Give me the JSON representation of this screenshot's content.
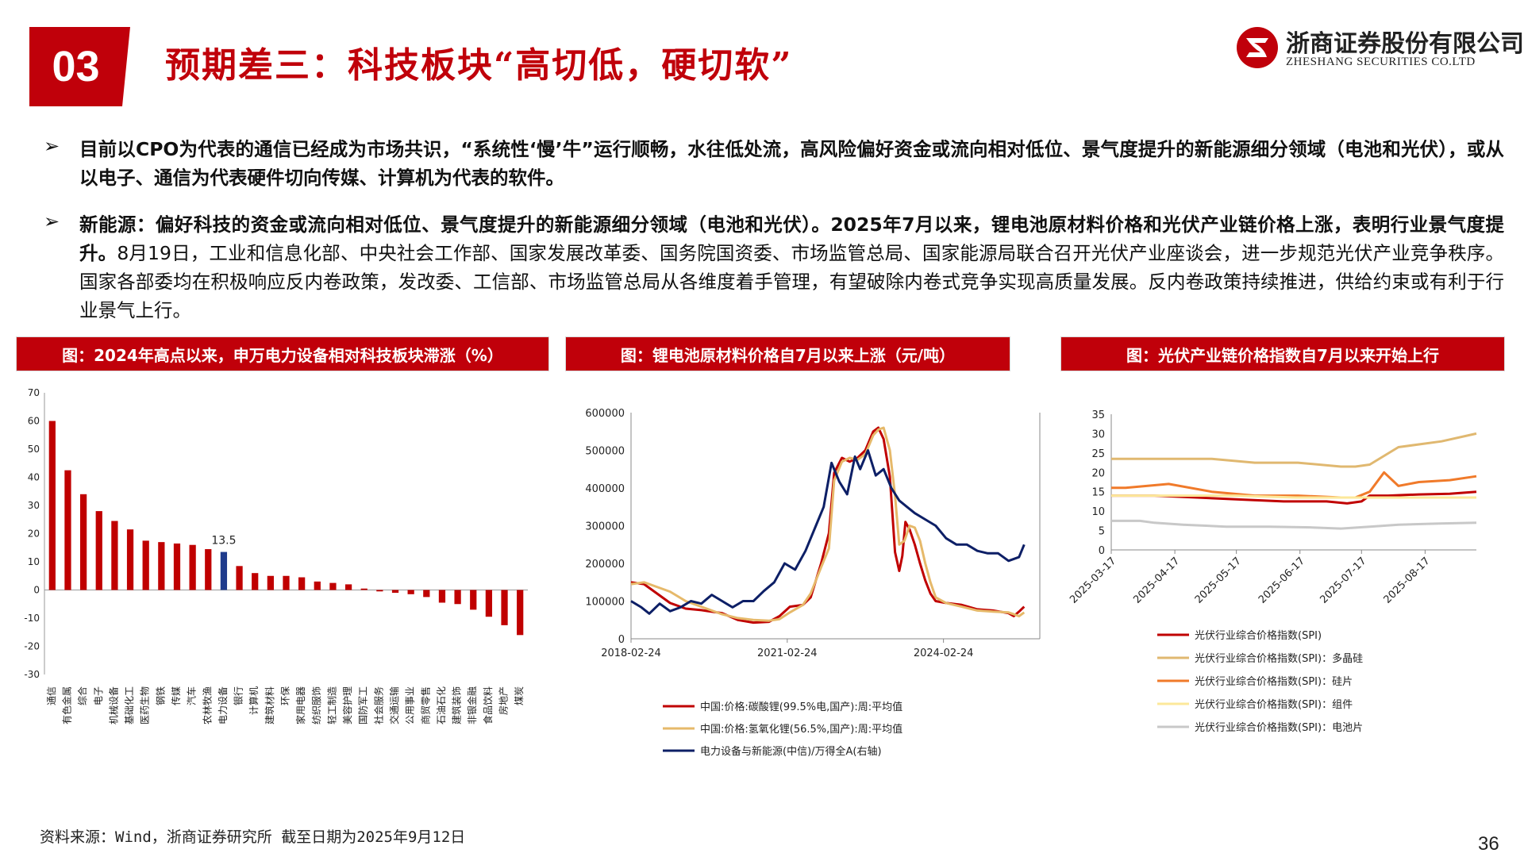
{
  "header": {
    "section_number": "03",
    "title": "预期差三：科技板块“高切低，硬切软”",
    "company_cn": "浙商证券股份有限公司",
    "company_en": "ZHESHANG SECURITIES CO.LTD",
    "brand_color": "#c0000a"
  },
  "bullets": [
    {
      "arrow": "➢",
      "bold_text": "目前以CPO为代表的通信已经成为市场共识，“系统性‘慢’牛”运行顺畅，水往低处流，高风险偏好资金或流向相对低位、景气度提升的新能源细分领域（电池和光伏），或从以电子、通信为代表硬件切向传媒、计算机为代表的软件。",
      "normal_text": ""
    },
    {
      "arrow": "➢",
      "bold_text": "新能源：偏好科技的资金或流向相对低位、景气度提升的新能源细分领域（电池和光伏）。2025年7月以来，锂电池原材料价格和光伏产业链价格上涨，表明行业景气度提升。",
      "normal_text": "8月19日，工业和信息化部、中央社会工作部、国家发展改革委、国务院国资委、市场监管总局、国家能源局联合召开光伏产业座谈会，进一步规范光伏产业竞争秩序。国家各部委均在积极响应反内卷政策，发改委、工信部、市场监管总局从各维度着手管理，有望破除内卷式竞争实现高质量发展。反内卷政策持续推进，供给约束或有利于行业景气上行。"
    }
  ],
  "chart_titles": [
    "图：2024年高点以来，申万电力设备相对科技板块滞涨（%）",
    "图：锂电池原材料价格自7月以来上涨（元/吨）",
    "图：光伏产业链价格指数自7月以来开始上行"
  ],
  "chart_data": [
    {
      "type": "bar",
      "categories": [
        "通信",
        "有色金属",
        "综合",
        "电子",
        "机械设备",
        "基础化工",
        "医药生物",
        "钢铁",
        "传媒",
        "汽车",
        "农林牧渔",
        "电力设备",
        "银行",
        "计算机",
        "建筑材料",
        "环保",
        "家用电器",
        "纺织服饰",
        "轻工制造",
        "美容护理",
        "国防军工",
        "社会服务",
        "交通运输",
        "公用事业",
        "商贸零售",
        "石油石化",
        "建筑装饰",
        "非银金融",
        "食品饮料",
        "房地产",
        "煤炭"
      ],
      "values": [
        60,
        42.5,
        34,
        28,
        24.5,
        21.5,
        17.5,
        17,
        16.5,
        16,
        14.5,
        13.5,
        8.5,
        6,
        5,
        5,
        4.5,
        3,
        2.5,
        2,
        0.5,
        -0.5,
        -1,
        -1.5,
        -2.5,
        -4.5,
        -5,
        -7,
        -9.5,
        -12.5,
        -16
      ],
      "highlight_index": 11,
      "highlight_label": "13.5",
      "ylim": [
        -30,
        70
      ],
      "yticks": [
        -30,
        -20,
        -10,
        0,
        10,
        20,
        30,
        40,
        50,
        60,
        70
      ],
      "colors": {
        "bar": "#c00000",
        "highlight": "#1f3b8c"
      }
    },
    {
      "type": "line",
      "x_tick_labels": [
        "2018-02-24",
        "2021-02-24",
        "2024-02-24"
      ],
      "x_tick_years": [
        2018.15,
        2021.15,
        2024.15
      ],
      "xlim": [
        2018.15,
        2026.0
      ],
      "ylim_left": [
        0,
        600000
      ],
      "yticks_left": [
        0,
        100000,
        200000,
        300000,
        400000,
        500000,
        600000
      ],
      "ylim_right": [
        1,
        2.8
      ],
      "yticks_right": [
        1,
        1.2,
        1.4,
        1.6,
        1.8,
        2,
        2.2,
        2.4,
        2.6,
        2.8
      ],
      "series": [
        {
          "name": "中国:价格:碳酸锂(99.5%电,国产):周:平均值",
          "axis": "left",
          "color": "#c00000",
          "x": [
            2018.15,
            2018.4,
            2018.6,
            2018.9,
            2019.2,
            2019.5,
            2019.9,
            2020.2,
            2020.5,
            2020.8,
            2021.0,
            2021.2,
            2021.45,
            2021.6,
            2021.8,
            2021.95,
            2022.05,
            2022.2,
            2022.35,
            2022.5,
            2022.65,
            2022.8,
            2022.9,
            2023.0,
            2023.12,
            2023.22,
            2023.3,
            2023.36,
            2023.42,
            2023.5,
            2023.6,
            2023.7,
            2023.8,
            2023.9,
            2024.0,
            2024.2,
            2024.5,
            2024.8,
            2025.1,
            2025.4,
            2025.5,
            2025.6,
            2025.7
          ],
          "y": [
            150000,
            145000,
            125000,
            95000,
            80000,
            76000,
            68000,
            50000,
            43000,
            45000,
            60000,
            85000,
            90000,
            110000,
            200000,
            280000,
            440000,
            480000,
            470000,
            480000,
            500000,
            550000,
            560000,
            530000,
            430000,
            230000,
            180000,
            220000,
            310000,
            290000,
            250000,
            200000,
            155000,
            120000,
            100000,
            95000,
            90000,
            78000,
            75000,
            68000,
            60000,
            72000,
            85000
          ]
        },
        {
          "name": "中国:价格:氢氧化锂(56.5%,国产):周:平均值",
          "axis": "left",
          "color": "#e6b96a",
          "x": [
            2018.15,
            2018.4,
            2018.6,
            2018.9,
            2019.2,
            2019.5,
            2019.9,
            2020.2,
            2020.5,
            2020.8,
            2021.0,
            2021.2,
            2021.45,
            2021.6,
            2021.8,
            2021.95,
            2022.05,
            2022.2,
            2022.35,
            2022.5,
            2022.65,
            2022.8,
            2022.9,
            2023.0,
            2023.12,
            2023.22,
            2023.3,
            2023.4,
            2023.5,
            2023.6,
            2023.7,
            2023.8,
            2023.9,
            2024.0,
            2024.2,
            2024.5,
            2024.8,
            2025.1,
            2025.4,
            2025.5,
            2025.6,
            2025.7
          ],
          "y": [
            145000,
            150000,
            140000,
            125000,
            100000,
            85000,
            65000,
            55000,
            50000,
            48000,
            52000,
            70000,
            90000,
            120000,
            190000,
            240000,
            420000,
            470000,
            480000,
            475000,
            490000,
            540000,
            555000,
            560000,
            500000,
            380000,
            250000,
            260000,
            300000,
            295000,
            260000,
            200000,
            150000,
            110000,
            95000,
            85000,
            75000,
            72000,
            70000,
            65000,
            60000,
            70000
          ]
        },
        {
          "name": "电力设备与新能源(中信)/万得全A(右轴)",
          "axis": "right",
          "color": "#0d1f66",
          "x": [
            2018.15,
            2018.35,
            2018.5,
            2018.7,
            2018.9,
            2019.1,
            2019.3,
            2019.5,
            2019.7,
            2019.9,
            2020.1,
            2020.3,
            2020.5,
            2020.7,
            2020.9,
            2021.1,
            2021.3,
            2021.5,
            2021.7,
            2021.85,
            2022.0,
            2022.15,
            2022.3,
            2022.45,
            2022.55,
            2022.7,
            2022.85,
            2023.0,
            2023.15,
            2023.3,
            2023.45,
            2023.6,
            2023.8,
            2024.0,
            2024.2,
            2024.4,
            2024.6,
            2024.8,
            2025.0,
            2025.2,
            2025.4,
            2025.6,
            2025.7
          ],
          "y": [
            1.3,
            1.25,
            1.2,
            1.28,
            1.22,
            1.25,
            1.3,
            1.28,
            1.35,
            1.3,
            1.25,
            1.3,
            1.3,
            1.38,
            1.45,
            1.6,
            1.55,
            1.7,
            1.9,
            2.05,
            2.4,
            2.25,
            2.15,
            2.45,
            2.35,
            2.5,
            2.3,
            2.35,
            2.2,
            2.1,
            2.05,
            2.0,
            1.95,
            1.9,
            1.8,
            1.75,
            1.75,
            1.7,
            1.68,
            1.68,
            1.62,
            1.65,
            1.75
          ]
        }
      ]
    },
    {
      "type": "line",
      "x_tick_labels": [
        "2025-03-17",
        "2025-04-17",
        "2025-05-17",
        "2025-06-17",
        "2025-07-17",
        "2025-08-17"
      ],
      "x_tick_days": [
        0,
        31,
        61,
        92,
        122,
        153
      ],
      "xlim": [
        0,
        178
      ],
      "ylim": [
        0,
        35
      ],
      "yticks": [
        0,
        5,
        10,
        15,
        20,
        25,
        30,
        35
      ],
      "series": [
        {
          "name": "光伏行业综合价格指数(SPI)",
          "color": "#c00000",
          "x": [
            0,
            21,
            42,
            63,
            84,
            105,
            115,
            122,
            126,
            135,
            150,
            165,
            178
          ],
          "y": [
            14,
            14,
            13.5,
            13,
            12.5,
            12.5,
            12,
            12.5,
            14,
            14,
            14.3,
            14.5,
            15
          ]
        },
        {
          "name": "光伏行业综合价格指数(SPI)：多晶硅",
          "color": "#e0b870",
          "x": [
            0,
            28,
            49,
            70,
            91,
            112,
            119,
            126,
            140,
            161,
            178
          ],
          "y": [
            23.5,
            23.5,
            23.5,
            22.5,
            22.5,
            21.5,
            21.5,
            22,
            26.5,
            28,
            30
          ]
        },
        {
          "name": "光伏行业综合价格指数(SPI)：硅片",
          "color": "#f07a2a",
          "x": [
            0,
            7,
            28,
            49,
            70,
            91,
            112,
            119,
            126,
            133,
            140,
            150,
            165,
            178
          ],
          "y": [
            16,
            16,
            17,
            15,
            14,
            14,
            13.5,
            13.5,
            15,
            20,
            16.5,
            17.5,
            18,
            19
          ]
        },
        {
          "name": "光伏行业综合价格指数(SPI)：组件",
          "color": "#fce89a",
          "x": [
            0,
            30,
            60,
            90,
            120,
            150,
            178
          ],
          "y": [
            14,
            14,
            14,
            13.5,
            13.5,
            13.5,
            13.5
          ]
        },
        {
          "name": "光伏行业综合价格指数(SPI)：电池片",
          "color": "#c8c8c8",
          "x": [
            0,
            14,
            21,
            35,
            56,
            77,
            98,
            112,
            126,
            140,
            160,
            178
          ],
          "y": [
            7.5,
            7.5,
            7,
            6.5,
            6,
            6,
            5.8,
            5.5,
            6,
            6.5,
            6.8,
            7
          ]
        }
      ]
    }
  ],
  "footer": {
    "source": "资料来源：Wind，浙商证券研究所 截至日期为2025年9月12日",
    "page_number": "36"
  }
}
